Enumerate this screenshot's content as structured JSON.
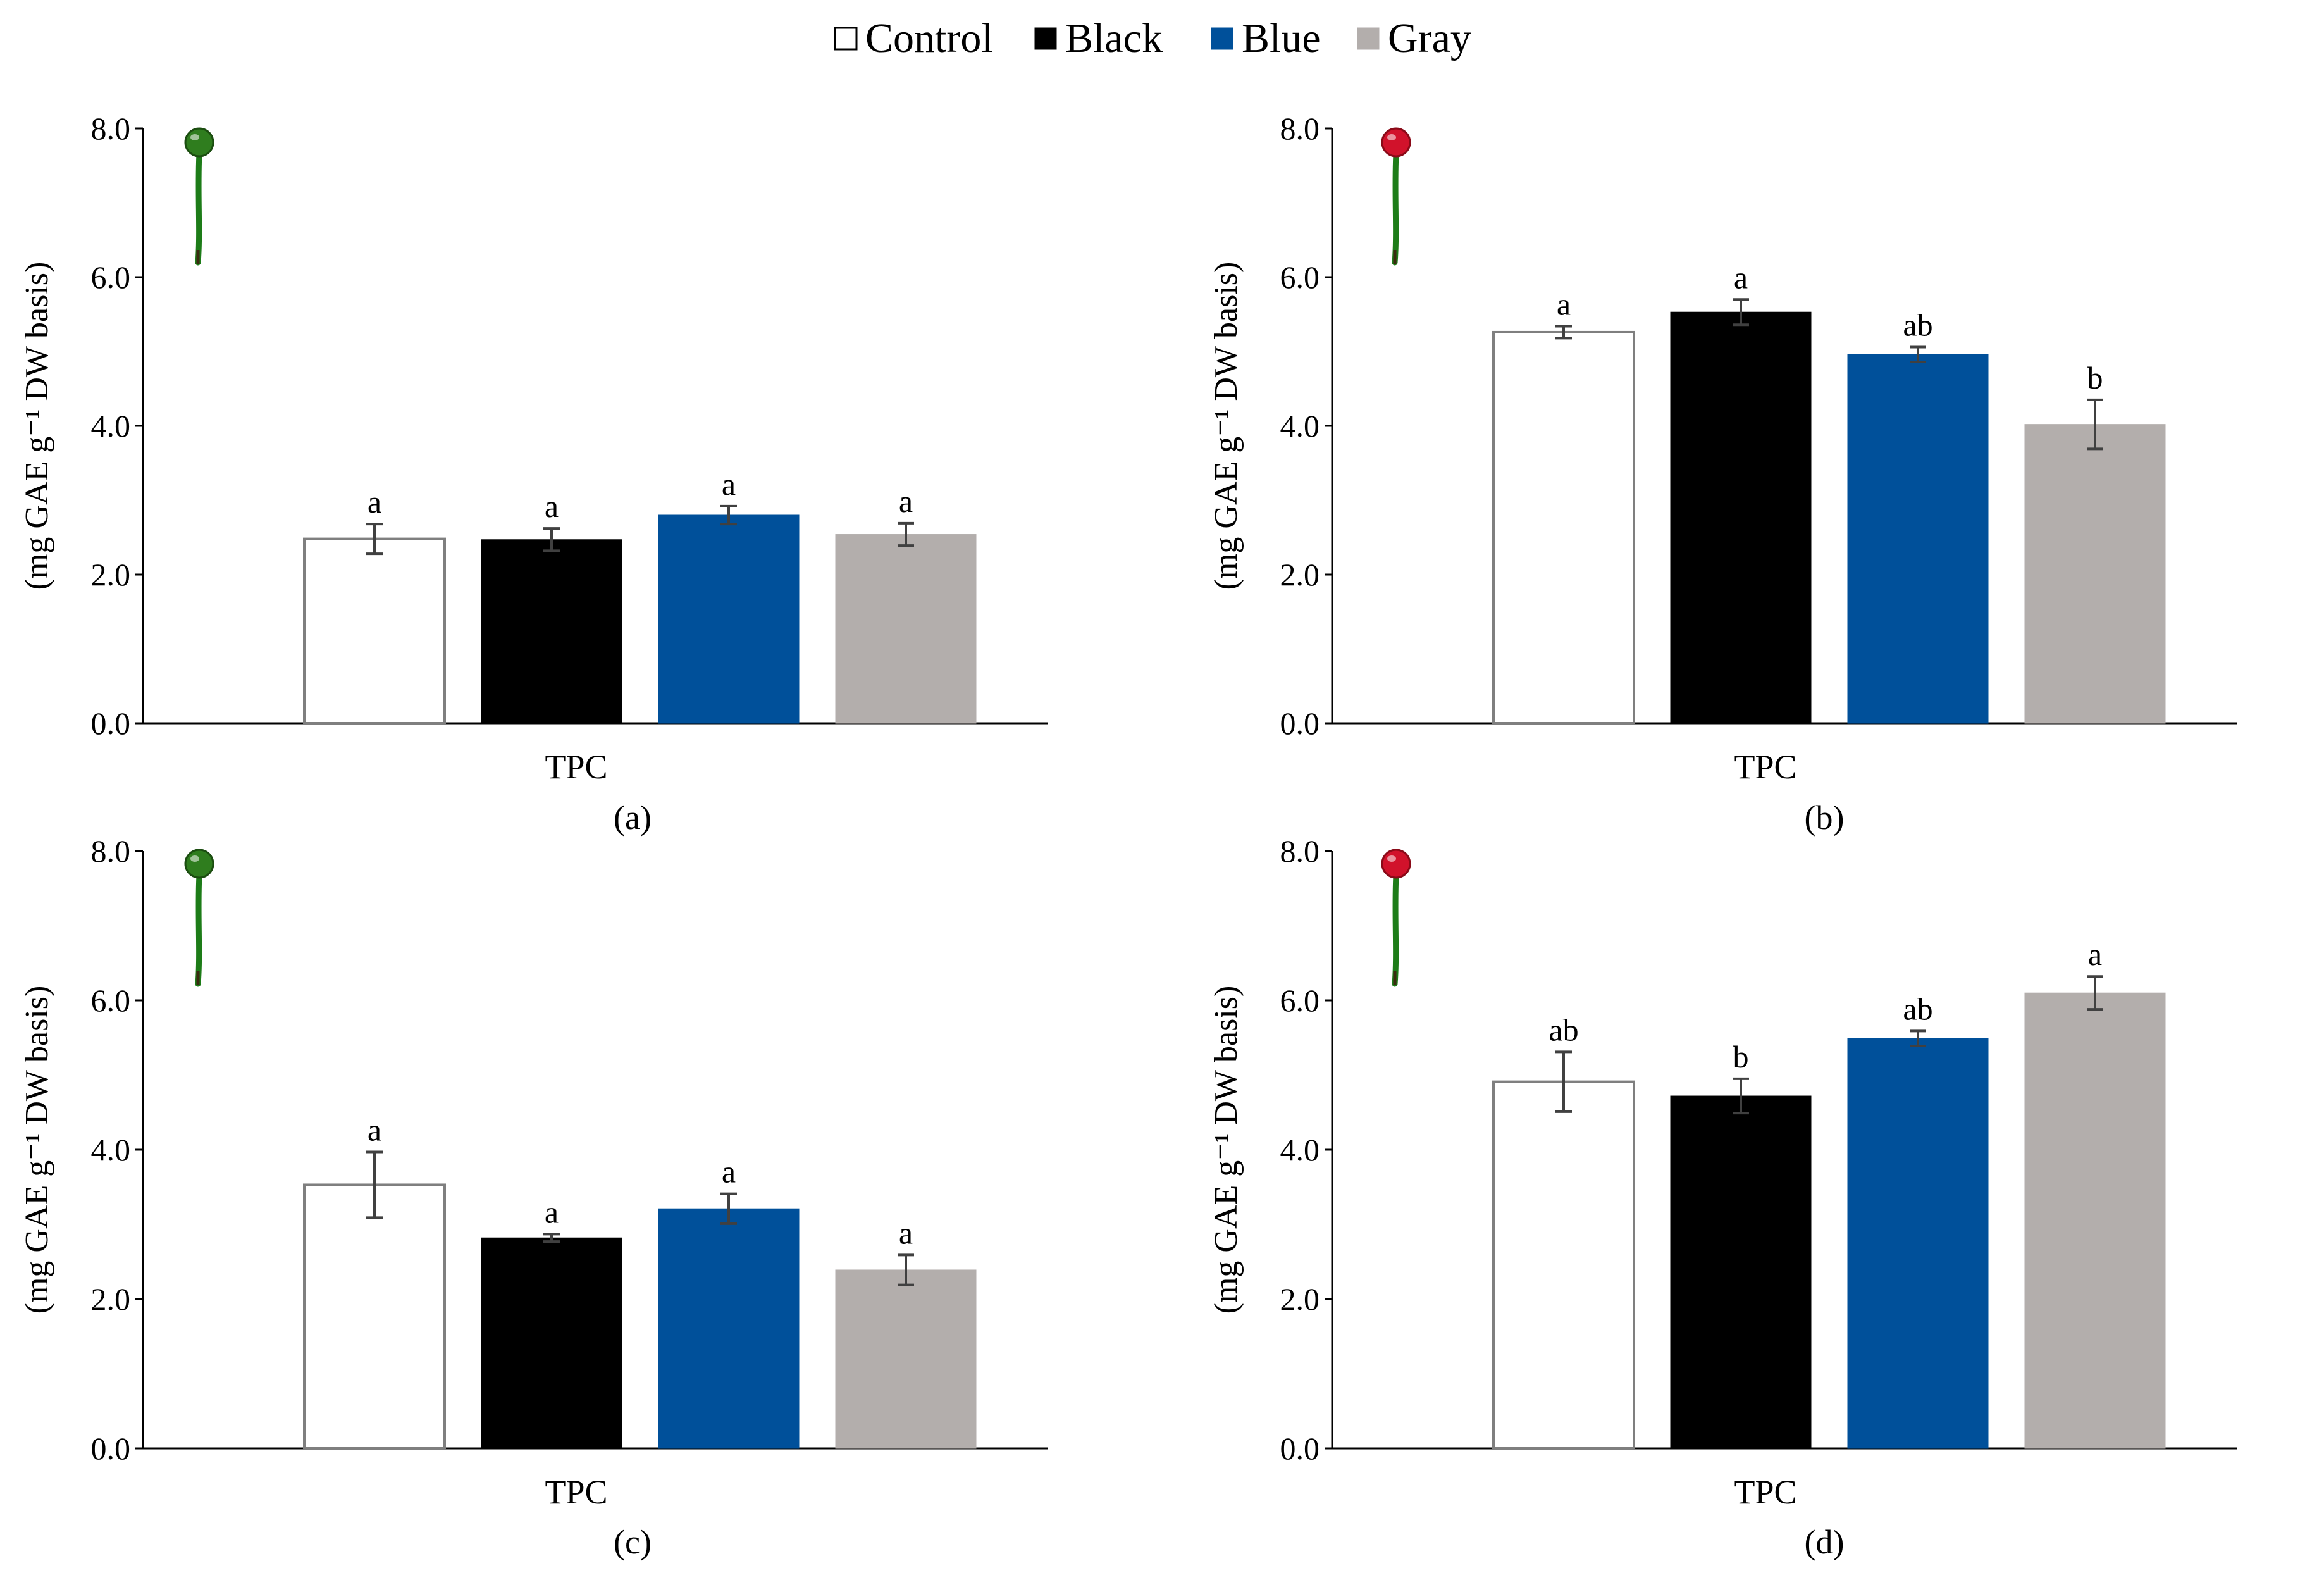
{
  "colors": {
    "Control": "#ffffff",
    "Black": "#000000",
    "Blue": "#00509a",
    "Gray": "#b3aeac",
    "control_edge": "#7f7f7f",
    "fruit_green": "#2f7d1e",
    "fruit_red": "#d1122b",
    "stem_green": "#1d7c18"
  },
  "legend": {
    "items": [
      {
        "label": "Control",
        "key": "Control"
      },
      {
        "label": "Black",
        "key": "Black"
      },
      {
        "label": "Blue",
        "key": "Blue"
      },
      {
        "label": "Gray",
        "key": "Gray"
      }
    ]
  },
  "chart_data": [
    {
      "type": "bar",
      "panel": "(a)",
      "fruit": "green-pepper-icon",
      "categories": [
        "TPC"
      ],
      "series": [
        {
          "name": "Control",
          "values": [
            2.48
          ],
          "error": [
            0.2
          ],
          "letter": "a"
        },
        {
          "name": "Black",
          "values": [
            2.47
          ],
          "error": [
            0.15
          ],
          "letter": "a"
        },
        {
          "name": "Blue",
          "values": [
            2.8
          ],
          "error": [
            0.12
          ],
          "letter": "a"
        },
        {
          "name": "Gray",
          "values": [
            2.54
          ],
          "error": [
            0.15
          ],
          "letter": "a"
        }
      ],
      "xlabel": "TPC",
      "ylabel": "(mg GAE g⁻¹ DW basis)",
      "ylim": [
        0,
        8
      ],
      "yticks": [
        "0.0",
        "2.0",
        "4.0",
        "6.0",
        "8.0"
      ]
    },
    {
      "type": "bar",
      "panel": "(b)",
      "fruit": "red-pepper-icon",
      "categories": [
        "TPC"
      ],
      "series": [
        {
          "name": "Control",
          "values": [
            5.26
          ],
          "error": [
            0.08
          ],
          "letter": "a"
        },
        {
          "name": "Black",
          "values": [
            5.53
          ],
          "error": [
            0.17
          ],
          "letter": "a"
        },
        {
          "name": "Blue",
          "values": [
            4.96
          ],
          "error": [
            0.1
          ],
          "letter": "ab"
        },
        {
          "name": "Gray",
          "values": [
            4.02
          ],
          "error": [
            0.33
          ],
          "letter": "b"
        }
      ],
      "xlabel": "TPC",
      "ylabel": "(mg GAE g⁻¹ DW basis)",
      "ylim": [
        0,
        8
      ],
      "yticks": [
        "0.0",
        "2.0",
        "4.0",
        "6.0",
        "8.0"
      ]
    },
    {
      "type": "bar",
      "panel": "(c)",
      "fruit": "green-pepper-icon",
      "categories": [
        "TPC"
      ],
      "series": [
        {
          "name": "Control",
          "values": [
            3.53
          ],
          "error": [
            0.44
          ],
          "letter": "a"
        },
        {
          "name": "Black",
          "values": [
            2.82
          ],
          "error": [
            0.05
          ],
          "letter": "a"
        },
        {
          "name": "Blue",
          "values": [
            3.21
          ],
          "error": [
            0.2
          ],
          "letter": "a"
        },
        {
          "name": "Gray",
          "values": [
            2.39
          ],
          "error": [
            0.2
          ],
          "letter": "a"
        }
      ],
      "xlabel": "TPC",
      "ylabel": "(mg GAE g⁻¹ DW basis)",
      "ylim": [
        0,
        8
      ],
      "yticks": [
        "0.0",
        "2.0",
        "4.0",
        "6.0",
        "8.0"
      ]
    },
    {
      "type": "bar",
      "panel": "(d)",
      "fruit": "red-pepper-icon",
      "categories": [
        "TPC"
      ],
      "series": [
        {
          "name": "Control",
          "values": [
            4.91
          ],
          "error": [
            0.4
          ],
          "letter": "ab"
        },
        {
          "name": "Black",
          "values": [
            4.72
          ],
          "error": [
            0.23
          ],
          "letter": "b"
        },
        {
          "name": "Blue",
          "values": [
            5.49
          ],
          "error": [
            0.1
          ],
          "letter": "ab"
        },
        {
          "name": "Gray",
          "values": [
            6.1
          ],
          "error": [
            0.22
          ],
          "letter": "a"
        }
      ],
      "xlabel": "TPC",
      "ylabel": "(mg GAE g⁻¹ DW basis)",
      "ylim": [
        0,
        8
      ],
      "yticks": [
        "0.0",
        "2.0",
        "4.0",
        "6.0",
        "8.0"
      ]
    }
  ]
}
